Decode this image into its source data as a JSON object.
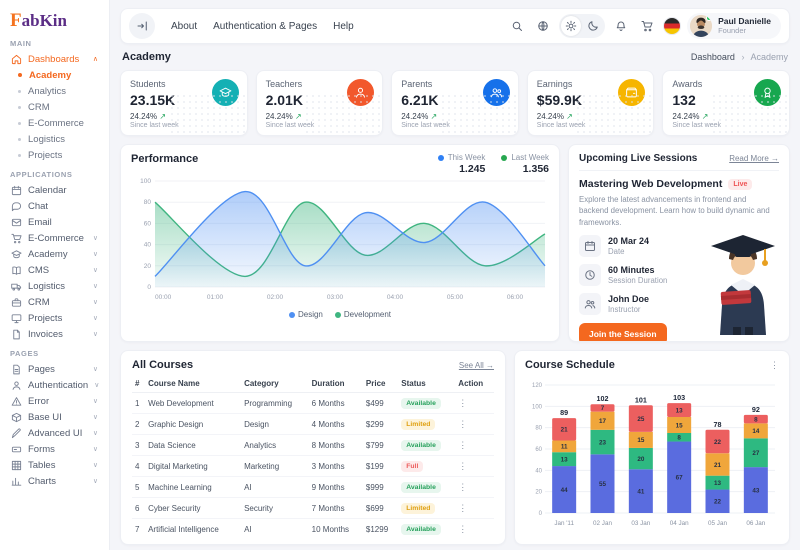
{
  "brand": {
    "first": "F",
    "rest": "abKin"
  },
  "ui": {
    "up_arrow": "↗",
    "kebab": "⋮",
    "chevron_up": "∧",
    "chevron_down": "∨"
  },
  "nav": {
    "menu": [
      "About",
      "Authentication & Pages",
      "Help"
    ],
    "icons_left": [
      "search",
      "globe"
    ],
    "theme_icons": [
      "sun",
      "moon"
    ],
    "theme_active": "sun",
    "icons_right": [
      "bell",
      "cart"
    ],
    "flag": "germany",
    "user": {
      "name": "Paul Danielle",
      "role": "Founder"
    }
  },
  "breadcrumb": {
    "title": "Academy",
    "root": "Dashboard",
    "sep": "›",
    "current": "Academy"
  },
  "sidebar": {
    "sections": {
      "main": "MAIN",
      "applications": "APPLICATIONS",
      "pages": "PAGES"
    },
    "dashboards": {
      "label": "Dashboards",
      "icon": "home",
      "children": [
        "Academy",
        "Analytics",
        "CRM",
        "E-Commerce",
        "Logistics",
        "Projects"
      ],
      "active_child": "Academy"
    },
    "applications": [
      {
        "label": "Calendar",
        "icon": "calendar",
        "expandable": false
      },
      {
        "label": "Chat",
        "icon": "chat",
        "expandable": false
      },
      {
        "label": "Email",
        "icon": "email",
        "expandable": false
      },
      {
        "label": "E-Commerce",
        "icon": "cart",
        "expandable": true
      },
      {
        "label": "Academy",
        "icon": "cap",
        "expandable": true
      },
      {
        "label": "CMS",
        "icon": "book",
        "expandable": true
      },
      {
        "label": "Logistics",
        "icon": "truck",
        "expandable": true
      },
      {
        "label": "CRM",
        "icon": "briefcase",
        "expandable": true
      },
      {
        "label": "Projects",
        "icon": "monitor",
        "expandable": true
      },
      {
        "label": "Invoices",
        "icon": "file",
        "expandable": true
      }
    ],
    "pages": [
      {
        "label": "Pages",
        "icon": "pages",
        "expandable": true
      },
      {
        "label": "Authentication",
        "icon": "user",
        "expandable": true
      },
      {
        "label": "Error",
        "icon": "alert",
        "expandable": true
      },
      {
        "label": "Base UI",
        "icon": "box",
        "expandable": true
      },
      {
        "label": "Advanced UI",
        "icon": "pen",
        "expandable": true
      },
      {
        "label": "Forms",
        "icon": "form",
        "expandable": true
      },
      {
        "label": "Tables",
        "icon": "grid",
        "expandable": true
      },
      {
        "label": "Charts",
        "icon": "chart",
        "expandable": true
      }
    ]
  },
  "stats": [
    {
      "label": "Students",
      "value": "23.15K",
      "delta": "24.24%",
      "sub": "Since last week",
      "icon": "cap",
      "color": "#14b0b4"
    },
    {
      "label": "Teachers",
      "value": "2.01K",
      "delta": "24.24%",
      "sub": "Since last week",
      "icon": "user",
      "color": "#f2582c"
    },
    {
      "label": "Parents",
      "value": "6.21K",
      "delta": "24.24%",
      "sub": "Since last week",
      "icon": "users",
      "color": "#1671ea"
    },
    {
      "label": "Earnings",
      "value": "$59.9K",
      "delta": "24.24%",
      "sub": "Since last week",
      "icon": "wallet",
      "color": "#f6b500"
    },
    {
      "label": "Awards",
      "value": "132",
      "delta": "24.24%",
      "sub": "Since last week",
      "icon": "award",
      "color": "#17a74f"
    }
  ],
  "live_sessions": {
    "title": "Upcoming Live Sessions",
    "link": "Read More →",
    "session": {
      "name": "Mastering Web Development",
      "badge": "Live",
      "description": "Explore the latest advancements in frontend and backend development. Learn how to build dynamic and frameworks.",
      "details": [
        {
          "icon": "calendar",
          "value": "20 Mar 24",
          "label": "Date"
        },
        {
          "icon": "clock",
          "value": "60 Minutes",
          "label": "Session Duration"
        },
        {
          "icon": "users",
          "value": "John Doe",
          "label": "Instructor"
        }
      ],
      "cta": "Join the Session"
    }
  },
  "courses": {
    "title": "All Courses",
    "link": "See All →",
    "columns": [
      "#",
      "Course Name",
      "Category",
      "Duration",
      "Price",
      "Status",
      "Action"
    ],
    "rows": [
      {
        "num": "1",
        "name": "Web Development",
        "category": "Programming",
        "duration": "6 Months",
        "price": "$499",
        "status": "Available"
      },
      {
        "num": "2",
        "name": "Graphic Design",
        "category": "Design",
        "duration": "4 Months",
        "price": "$299",
        "status": "Limited"
      },
      {
        "num": "3",
        "name": "Data Science",
        "category": "Analytics",
        "duration": "8 Months",
        "price": "$799",
        "status": "Available"
      },
      {
        "num": "4",
        "name": "Digital Marketing",
        "category": "Marketing",
        "duration": "3 Months",
        "price": "$199",
        "status": "Full"
      },
      {
        "num": "5",
        "name": "Machine Learning",
        "category": "AI",
        "duration": "9 Months",
        "price": "$999",
        "status": "Available"
      },
      {
        "num": "6",
        "name": "Cyber Security",
        "category": "Security",
        "duration": "7 Months",
        "price": "$699",
        "status": "Limited"
      },
      {
        "num": "7",
        "name": "Artificial Intelligence",
        "category": "AI",
        "duration": "10 Months",
        "price": "$1299",
        "status": "Available"
      }
    ],
    "status_colors": {
      "Available": {
        "bg": "#e7f6ee",
        "fg": "#27a15c"
      },
      "Limited": {
        "bg": "#fdf3da",
        "fg": "#dfa011"
      },
      "Full": {
        "bg": "#fdeaea",
        "fg": "#ec5b5b"
      }
    }
  },
  "chart_data": [
    {
      "type": "area",
      "title": "Performance",
      "legend_top": [
        {
          "label": "This Week",
          "value": "1.245",
          "color": "#2f80f5"
        },
        {
          "label": "Last Week",
          "value": "1.356",
          "color": "#27a750"
        }
      ],
      "xticks": [
        "00:00",
        "01:00",
        "02:00",
        "03:00",
        "04:00",
        "05:00",
        "06:00"
      ],
      "xlim": [
        0,
        6.5
      ],
      "ylim": [
        0,
        100
      ],
      "yticks": [
        0,
        20,
        40,
        60,
        80,
        100
      ],
      "grid": true,
      "legend_position": "bottom",
      "series": [
        {
          "name": "Development",
          "color": "#3fb580",
          "x": [
            0,
            1.5,
            2.5,
            3.5,
            4.5,
            5.5,
            6.5
          ],
          "values": [
            80,
            10,
            80,
            30,
            60,
            20,
            50
          ]
        },
        {
          "name": "Design",
          "color": "#4f90f2",
          "x": [
            0,
            1.5,
            2.5,
            3.5,
            4.5,
            5.5,
            6.5
          ],
          "values": [
            10,
            90,
            20,
            70,
            42,
            80,
            20
          ]
        }
      ]
    },
    {
      "type": "bar",
      "title": "Course Schedule",
      "stacked": true,
      "categories": [
        "Jan '11",
        "02 Jan",
        "03 Jan",
        "04 Jan",
        "05 Jan",
        "06 Jan"
      ],
      "ylim": [
        0,
        120
      ],
      "yticks": [
        0,
        20,
        40,
        60,
        80,
        100,
        120
      ],
      "grid": true,
      "series": [
        {
          "name": "blue",
          "color": "#5a6cdf",
          "values": [
            44,
            55,
            41,
            67,
            22,
            43
          ]
        },
        {
          "name": "green",
          "color": "#2eb981",
          "values": [
            13,
            23,
            20,
            8,
            13,
            27
          ]
        },
        {
          "name": "yellow",
          "color": "#f0a63b",
          "values": [
            11,
            17,
            15,
            15,
            21,
            14
          ]
        },
        {
          "name": "red",
          "color": "#ec5f5f",
          "values": [
            21,
            7,
            25,
            13,
            22,
            8
          ]
        }
      ],
      "totals": [
        89,
        102,
        101,
        103,
        78,
        92
      ]
    }
  ]
}
